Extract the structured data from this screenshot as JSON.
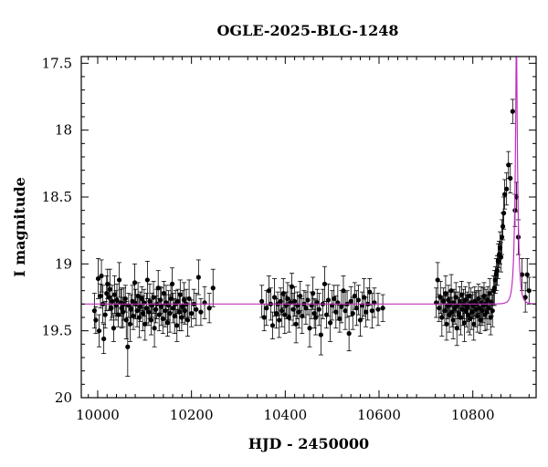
{
  "chart_data": {
    "type": "scatter",
    "title": "OGLE-2025-BLG-1248",
    "xlabel": "HJD - 2450000",
    "ylabel": "I magnitude",
    "xlim": [
      9965,
      10935
    ],
    "ylim": [
      20.0,
      17.45
    ],
    "y_inverted": true,
    "x_ticks": [
      10000,
      10200,
      10400,
      10600,
      10800
    ],
    "y_ticks": [
      17.5,
      18,
      18.5,
      19,
      19.5,
      20
    ],
    "y_tick_labels": [
      "17.5",
      "18",
      "18.5",
      "19",
      "19.5",
      "20"
    ],
    "grid": false,
    "colors": {
      "points": "#000000",
      "model": "#c030c0",
      "axes": "#000000"
    },
    "model": {
      "name": "",
      "baseline": 19.3,
      "peak_x": 10893,
      "peak_mag": 17.3,
      "tE": 6.5
    },
    "series": [
      {
        "name": "",
        "points": [
          [
            9993,
            19.35,
            0.13
          ],
          [
            9996,
            19.42,
            0.1
          ],
          [
            10001,
            19.11,
            0.15
          ],
          [
            10003,
            19.5,
            0.12
          ],
          [
            10006,
            19.24,
            0.09
          ],
          [
            10008,
            19.09,
            0.12
          ],
          [
            10011,
            19.3,
            0.14
          ],
          [
            10013,
            19.56,
            0.11
          ],
          [
            10016,
            19.38,
            0.1
          ],
          [
            10019,
            19.22,
            0.13
          ],
          [
            10021,
            19.15,
            0.11
          ],
          [
            10024,
            19.25,
            0.1
          ],
          [
            10026,
            19.19,
            0.15
          ],
          [
            10029,
            19.33,
            0.09
          ],
          [
            10031,
            19.28,
            0.12
          ],
          [
            10034,
            19.48,
            0.1
          ],
          [
            10036,
            19.23,
            0.14
          ],
          [
            10039,
            19.31,
            0.11
          ],
          [
            10041,
            19.27,
            0.12
          ],
          [
            10044,
            19.38,
            0.09
          ],
          [
            10046,
            19.12,
            0.13
          ],
          [
            10049,
            19.29,
            0.1
          ],
          [
            10051,
            19.33,
            0.15
          ],
          [
            10054,
            19.36,
            0.11
          ],
          [
            10056,
            19.3,
            0.12
          ],
          [
            10059,
            19.26,
            0.1
          ],
          [
            10061,
            19.42,
            0.14
          ],
          [
            10064,
            19.62,
            0.22
          ],
          [
            10066,
            19.31,
            0.09
          ],
          [
            10069,
            19.45,
            0.13
          ],
          [
            10071,
            19.34,
            0.11
          ],
          [
            10074,
            19.28,
            0.12
          ],
          [
            10076,
            19.39,
            0.1
          ],
          [
            10079,
            19.14,
            0.14
          ],
          [
            10081,
            19.3,
            0.11
          ],
          [
            10084,
            19.35,
            0.12
          ],
          [
            10086,
            19.24,
            0.1
          ],
          [
            10089,
            19.4,
            0.15
          ],
          [
            10091,
            19.32,
            0.11
          ],
          [
            10094,
            19.26,
            0.09
          ],
          [
            10096,
            19.37,
            0.13
          ],
          [
            10099,
            19.29,
            0.1
          ],
          [
            10101,
            19.45,
            0.12
          ],
          [
            10104,
            19.33,
            0.11
          ],
          [
            10106,
            19.12,
            0.14
          ],
          [
            10109,
            19.36,
            0.1
          ],
          [
            10111,
            19.28,
            0.13
          ],
          [
            10114,
            19.42,
            0.11
          ],
          [
            10116,
            19.31,
            0.09
          ],
          [
            10119,
            19.25,
            0.12
          ],
          [
            10121,
            19.48,
            0.14
          ],
          [
            10124,
            19.34,
            0.1
          ],
          [
            10126,
            19.3,
            0.11
          ],
          [
            10129,
            19.18,
            0.13
          ],
          [
            10131,
            19.38,
            0.12
          ],
          [
            10134,
            19.27,
            0.1
          ],
          [
            10136,
            19.32,
            0.14
          ],
          [
            10139,
            19.41,
            0.11
          ],
          [
            10141,
            19.22,
            0.09
          ],
          [
            10144,
            19.35,
            0.12
          ],
          [
            10146,
            19.29,
            0.13
          ],
          [
            10149,
            19.44,
            0.1
          ],
          [
            10151,
            19.31,
            0.11
          ],
          [
            10154,
            19.37,
            0.14
          ],
          [
            10156,
            19.26,
            0.1
          ],
          [
            10159,
            19.15,
            0.12
          ],
          [
            10161,
            19.33,
            0.11
          ],
          [
            10164,
            19.39,
            0.13
          ],
          [
            10166,
            19.3,
            0.1
          ],
          [
            10169,
            19.46,
            0.12
          ],
          [
            10171,
            19.28,
            0.09
          ],
          [
            10174,
            19.36,
            0.14
          ],
          [
            10176,
            19.23,
            0.11
          ],
          [
            10179,
            19.4,
            0.1
          ],
          [
            10181,
            19.32,
            0.12
          ],
          [
            10184,
            19.27,
            0.13
          ],
          [
            10186,
            19.35,
            0.1
          ],
          [
            10189,
            19.3,
            0.11
          ],
          [
            10192,
            19.42,
            0.12
          ],
          [
            10195,
            19.26,
            0.14
          ],
          [
            10200,
            19.37,
            0.1
          ],
          [
            10205,
            19.3,
            0.11
          ],
          [
            10210,
            19.34,
            0.12
          ],
          [
            10215,
            19.1,
            0.13
          ],
          [
            10220,
            19.36,
            0.1
          ],
          [
            10228,
            19.29,
            0.12
          ],
          [
            10238,
            19.33,
            0.11
          ],
          [
            10246,
            19.18,
            0.14
          ],
          [
            10350,
            19.28,
            0.12
          ],
          [
            10355,
            19.4,
            0.1
          ],
          [
            10360,
            19.33,
            0.13
          ],
          [
            10365,
            19.2,
            0.11
          ],
          [
            10369,
            19.3,
            0.12
          ],
          [
            10373,
            19.46,
            0.1
          ],
          [
            10377,
            19.25,
            0.14
          ],
          [
            10381,
            19.37,
            0.11
          ],
          [
            10384,
            19.3,
            0.09
          ],
          [
            10387,
            19.42,
            0.13
          ],
          [
            10390,
            19.28,
            0.1
          ],
          [
            10393,
            19.35,
            0.12
          ],
          [
            10396,
            19.22,
            0.11
          ],
          [
            10399,
            19.38,
            0.14
          ],
          [
            10402,
            19.31,
            0.1
          ],
          [
            10405,
            19.26,
            0.12
          ],
          [
            10408,
            19.4,
            0.11
          ],
          [
            10411,
            19.29,
            0.13
          ],
          [
            10414,
            19.17,
            0.1
          ],
          [
            10417,
            19.34,
            0.12
          ],
          [
            10420,
            19.28,
            0.11
          ],
          [
            10423,
            19.45,
            0.14
          ],
          [
            10426,
            19.31,
            0.1
          ],
          [
            10429,
            19.36,
            0.12
          ],
          [
            10432,
            19.24,
            0.11
          ],
          [
            10436,
            19.39,
            0.13
          ],
          [
            10440,
            19.3,
            0.1
          ],
          [
            10444,
            19.33,
            0.12
          ],
          [
            10448,
            19.27,
            0.11
          ],
          [
            10452,
            19.48,
            0.14
          ],
          [
            10456,
            19.31,
            0.1
          ],
          [
            10459,
            19.22,
            0.12
          ],
          [
            10462,
            19.37,
            0.11
          ],
          [
            10465,
            19.4,
            0.13
          ],
          [
            10468,
            19.29,
            0.1
          ],
          [
            10472,
            19.34,
            0.12
          ],
          [
            10476,
            19.53,
            0.15
          ],
          [
            10480,
            19.3,
            0.11
          ],
          [
            10484,
            19.15,
            0.13
          ],
          [
            10488,
            19.38,
            0.1
          ],
          [
            10492,
            19.27,
            0.12
          ],
          [
            10496,
            19.44,
            0.14
          ],
          [
            10500,
            19.31,
            0.11
          ],
          [
            10504,
            19.26,
            0.1
          ],
          [
            10508,
            19.36,
            0.12
          ],
          [
            10512,
            19.29,
            0.13
          ],
          [
            10516,
            19.41,
            0.1
          ],
          [
            10520,
            19.32,
            0.12
          ],
          [
            10524,
            19.2,
            0.11
          ],
          [
            10528,
            19.35,
            0.14
          ],
          [
            10532,
            19.3,
            0.1
          ],
          [
            10536,
            19.52,
            0.13
          ],
          [
            10540,
            19.28,
            0.11
          ],
          [
            10544,
            19.37,
            0.12
          ],
          [
            10548,
            19.24,
            0.1
          ],
          [
            10552,
            19.33,
            0.13
          ],
          [
            10556,
            19.27,
            0.11
          ],
          [
            10560,
            19.42,
            0.12
          ],
          [
            10564,
            19.31,
            0.1
          ],
          [
            10568,
            19.25,
            0.14
          ],
          [
            10572,
            19.36,
            0.11
          ],
          [
            10576,
            19.3,
            0.12
          ],
          [
            10580,
            19.21,
            0.1
          ],
          [
            10585,
            19.35,
            0.13
          ],
          [
            10590,
            19.29,
            0.11
          ],
          [
            10598,
            19.34,
            0.12
          ],
          [
            10608,
            19.33,
            0.1
          ],
          [
            10722,
            19.29,
            0.11
          ],
          [
            10725,
            19.12,
            0.13
          ],
          [
            10728,
            19.33,
            0.1
          ],
          [
            10731,
            19.25,
            0.12
          ],
          [
            10734,
            19.4,
            0.14
          ],
          [
            10737,
            19.28,
            0.1
          ],
          [
            10740,
            19.35,
            0.11
          ],
          [
            10742,
            19.22,
            0.13
          ],
          [
            10744,
            19.45,
            0.12
          ],
          [
            10746,
            19.31,
            0.1
          ],
          [
            10748,
            19.27,
            0.11
          ],
          [
            10750,
            19.38,
            0.13
          ],
          [
            10752,
            19.3,
            0.1
          ],
          [
            10754,
            19.2,
            0.12
          ],
          [
            10756,
            19.36,
            0.11
          ],
          [
            10758,
            19.42,
            0.14
          ],
          [
            10760,
            19.29,
            0.1
          ],
          [
            10762,
            19.33,
            0.12
          ],
          [
            10764,
            19.25,
            0.11
          ],
          [
            10766,
            19.48,
            0.13
          ],
          [
            10768,
            19.31,
            0.1
          ],
          [
            10770,
            19.37,
            0.12
          ],
          [
            10772,
            19.28,
            0.11
          ],
          [
            10774,
            19.4,
            0.13
          ],
          [
            10776,
            19.23,
            0.1
          ],
          [
            10778,
            19.34,
            0.12
          ],
          [
            10780,
            19.3,
            0.11
          ],
          [
            10782,
            19.44,
            0.14
          ],
          [
            10784,
            19.27,
            0.1
          ],
          [
            10786,
            19.35,
            0.12
          ],
          [
            10788,
            19.32,
            0.11
          ],
          [
            10790,
            19.38,
            0.13
          ],
          [
            10792,
            19.24,
            0.1
          ],
          [
            10794,
            19.41,
            0.12
          ],
          [
            10796,
            19.29,
            0.11
          ],
          [
            10798,
            19.36,
            0.13
          ],
          [
            10800,
            19.31,
            0.1
          ],
          [
            10802,
            19.45,
            0.12
          ],
          [
            10804,
            19.28,
            0.11
          ],
          [
            10806,
            19.34,
            0.13
          ],
          [
            10808,
            19.3,
            0.1
          ],
          [
            10810,
            19.39,
            0.12
          ],
          [
            10812,
            19.26,
            0.11
          ],
          [
            10814,
            19.33,
            0.13
          ],
          [
            10816,
            19.42,
            0.1
          ],
          [
            10818,
            19.29,
            0.12
          ],
          [
            10820,
            19.35,
            0.11
          ],
          [
            10822,
            19.31,
            0.13
          ],
          [
            10824,
            19.24,
            0.1
          ],
          [
            10826,
            19.38,
            0.12
          ],
          [
            10828,
            19.3,
            0.11
          ],
          [
            10830,
            19.36,
            0.13
          ],
          [
            10832,
            19.27,
            0.1
          ],
          [
            10834,
            19.33,
            0.12
          ],
          [
            10836,
            19.22,
            0.11
          ],
          [
            10838,
            19.4,
            0.13
          ],
          [
            10840,
            19.29,
            0.1
          ],
          [
            10842,
            19.35,
            0.12
          ],
          [
            10844,
            19.2,
            0.11
          ],
          [
            10846,
            19.18,
            0.13
          ],
          [
            10848,
            19.12,
            0.1
          ],
          [
            10850,
            19.08,
            0.12
          ],
          [
            10852,
            19.05,
            0.11
          ],
          [
            10854,
            18.98,
            0.13
          ],
          [
            10856,
            18.93,
            0.1
          ],
          [
            10858,
            18.88,
            0.12
          ],
          [
            10860,
            18.95,
            0.11
          ],
          [
            10862,
            18.8,
            0.13
          ],
          [
            10864,
            18.72,
            0.1
          ],
          [
            10866,
            18.62,
            0.12
          ],
          [
            10868,
            18.48,
            0.11
          ],
          [
            10872,
            18.44,
            0.12
          ],
          [
            10876,
            18.26,
            0.1
          ],
          [
            10880,
            18.36,
            0.11
          ],
          [
            10885,
            17.86,
            0.09
          ],
          [
            10890,
            18.6,
            0.12
          ],
          [
            10893,
            18.5,
            0.11
          ],
          [
            10897,
            18.8,
            0.13
          ],
          [
            10905,
            19.08,
            0.12
          ],
          [
            10912,
            19.25,
            0.11
          ],
          [
            10916,
            19.08,
            0.12
          ],
          [
            10920,
            19.2,
            0.1
          ]
        ]
      }
    ]
  }
}
